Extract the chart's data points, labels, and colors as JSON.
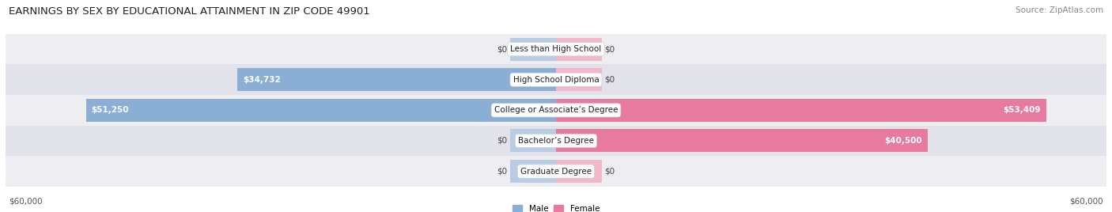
{
  "title": "EARNINGS BY SEX BY EDUCATIONAL ATTAINMENT IN ZIP CODE 49901",
  "source": "Source: ZipAtlas.com",
  "categories": [
    "Less than High School",
    "High School Diploma",
    "College or Associate’s Degree",
    "Bachelor’s Degree",
    "Graduate Degree"
  ],
  "male_values": [
    0,
    34732,
    51250,
    0,
    0
  ],
  "female_values": [
    0,
    0,
    53409,
    40500,
    0
  ],
  "male_color": "#8bafd4",
  "female_color": "#e87aa0",
  "male_color_light": "#b8cce4",
  "female_color_light": "#f2b8ca",
  "row_bg_even": "#ededf2",
  "row_bg_odd": "#e2e2ea",
  "max_value": 60000,
  "zero_bar_size": 5000,
  "axis_label_left": "$60,000",
  "axis_label_right": "$60,000",
  "legend_male": "Male",
  "legend_female": "Female",
  "title_fontsize": 9.5,
  "source_fontsize": 7.5,
  "label_fontsize": 7.5,
  "category_fontsize": 7.5,
  "value_fontsize": 7.5
}
